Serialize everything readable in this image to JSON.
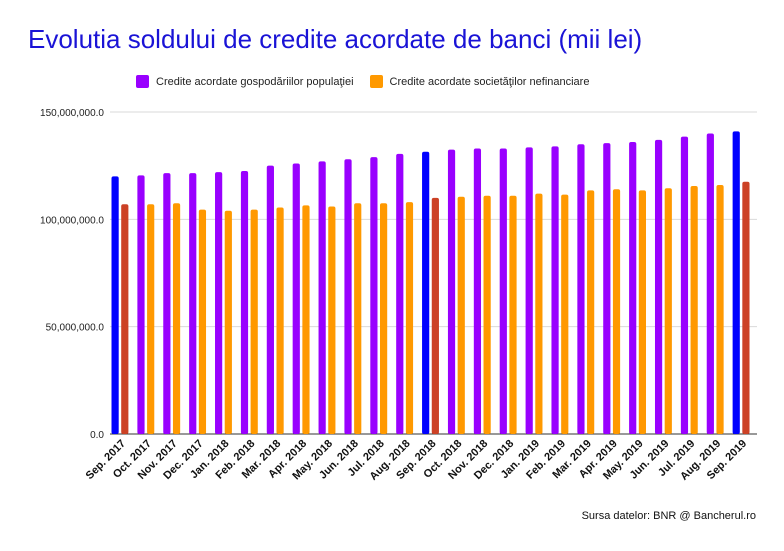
{
  "chart_data": {
    "type": "bar",
    "title": "Evolutia soldului de credite acordate de banci (mii lei)",
    "categories": [
      "Sep. 2017",
      "Oct. 2017",
      "Nov. 2017",
      "Dec. 2017",
      "Jan. 2018",
      "Feb. 2018",
      "Mar. 2018",
      "Apr. 2018",
      "May. 2018",
      "Jun. 2018",
      "Jul. 2018",
      "Aug. 2018",
      "Sep. 2018",
      "Oct. 2018",
      "Nov. 2018",
      "Dec. 2018",
      "Jan. 2019",
      "Feb. 2019",
      "Mar. 2019",
      "Apr. 2019",
      "May. 2019",
      "Jun. 2019",
      "Jul. 2019",
      "Aug. 2019",
      "Sep. 2019"
    ],
    "series": [
      {
        "name": "Credite acordate gospodăriilor populaţiei",
        "color": "#9900ff",
        "highlight_color": "#0000ff",
        "values": [
          120000000,
          120500000,
          121500000,
          121500000,
          122000000,
          122500000,
          125000000,
          126000000,
          127000000,
          128000000,
          129000000,
          130500000,
          131500000,
          132500000,
          133000000,
          133000000,
          133500000,
          134000000,
          135000000,
          135500000,
          136000000,
          137000000,
          138500000,
          140000000,
          141000000
        ]
      },
      {
        "name": "Credite acordate societăţilor nefinanciare",
        "color": "#ff9900",
        "highlight_color": "#cc4125",
        "values": [
          107000000,
          107000000,
          107500000,
          104500000,
          104000000,
          104500000,
          105500000,
          106500000,
          106000000,
          107500000,
          107500000,
          108000000,
          110000000,
          110500000,
          111000000,
          111000000,
          112000000,
          111500000,
          113500000,
          114000000,
          113500000,
          114500000,
          115500000,
          116000000,
          117500000
        ]
      }
    ],
    "highlighted_categories": [
      "Sep. 2017",
      "Sep. 2018",
      "Sep. 2019"
    ],
    "yticks": [
      "0.0",
      "50,000,000.0",
      "100,000,000.0",
      "150,000,000.0"
    ],
    "ylim": [
      0,
      150000000
    ],
    "legend_position": "top",
    "grid": true,
    "source": "Sursa datelor: BNR @ Bancherul.ro"
  }
}
